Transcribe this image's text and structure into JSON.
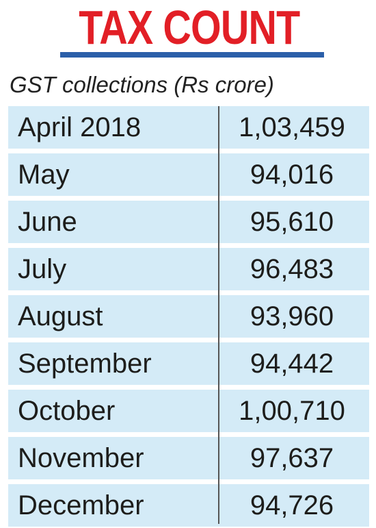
{
  "header": {
    "title": "TAX COUNT",
    "subtitle": "GST collections (Rs crore)"
  },
  "colors": {
    "title": "#e21f26",
    "rule": "#2b5fa9",
    "row_fill": "#d4ebf7",
    "text": "#1d1d1b"
  },
  "chart_data": {
    "type": "table",
    "title": "TAX COUNT",
    "subtitle": "GST collections (Rs crore)",
    "rows": [
      {
        "label": "April 2018",
        "value": "1,03,459"
      },
      {
        "label": "May",
        "value": "94,016"
      },
      {
        "label": "June",
        "value": "95,610"
      },
      {
        "label": "July",
        "value": "96,483"
      },
      {
        "label": "August",
        "value": "93,960"
      },
      {
        "label": "September",
        "value": "94,442"
      },
      {
        "label": "October",
        "value": "1,00,710"
      },
      {
        "label": "November",
        "value": "97,637"
      },
      {
        "label": "December",
        "value": "94,726"
      }
    ]
  }
}
